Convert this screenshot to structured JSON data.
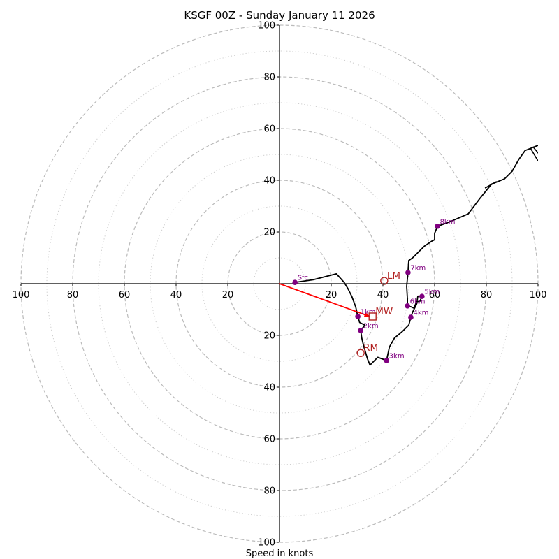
{
  "chart_data": {
    "type": "line",
    "subtype": "hodograph",
    "title": "KSGF 00Z - Sunday January 11 2026",
    "xlabel": "Speed in knots",
    "ylabel": "",
    "range": [
      -100,
      100
    ],
    "rings": {
      "major_dashed": [
        20,
        40,
        60,
        80,
        100
      ],
      "minor_dotted": [
        10,
        30,
        50,
        70,
        90
      ],
      "color": "#bbbbbb"
    },
    "ticks": {
      "x_left": [
        "100",
        "80",
        "60",
        "40",
        "20"
      ],
      "x_left_values": [
        -100,
        -80,
        -60,
        -40,
        -20
      ],
      "x_right": [
        "20",
        "40",
        "60",
        "80",
        "100"
      ],
      "x_right_values": [
        20,
        40,
        60,
        80,
        100
      ],
      "y_top": [
        "20",
        "40",
        "60",
        "80",
        "100"
      ],
      "y_top_values": [
        20,
        40,
        60,
        80,
        100
      ],
      "y_bottom": [
        "20",
        "40",
        "60",
        "80",
        "100"
      ],
      "y_bottom_values": [
        -20,
        -40,
        -60,
        -80,
        -100
      ]
    },
    "hodograph": {
      "color": "#000000",
      "u": [
        6,
        13,
        22,
        25,
        26.5,
        28,
        29.5,
        30.3,
        31,
        33,
        31.4,
        31.8,
        32.5,
        34,
        35,
        38,
        41.4,
        42.5,
        42.5,
        44.5,
        47.5,
        50,
        50.8,
        51.5,
        53,
        53.5,
        55.1,
        54.3,
        53,
        52,
        51,
        49.5,
        49.5,
        49.2,
        49.7,
        50,
        51.5,
        56,
        59,
        60,
        60,
        61.1,
        66,
        73,
        77.5,
        82,
        87,
        90,
        92.5,
        95,
        100
      ],
      "v": [
        0.5,
        1.5,
        3.8,
        0.5,
        -2,
        -5,
        -9,
        -12.7,
        -15,
        -16,
        -18.1,
        -21,
        -24,
        -29,
        -31.5,
        -28.5,
        -29.7,
        -24.5,
        -24.5,
        -21,
        -18.5,
        -16,
        -13,
        -11,
        -8,
        -4.8,
        -4.9,
        -6.8,
        -7,
        -9.5,
        -9,
        -8.6,
        -6,
        -1,
        4.3,
        9,
        10,
        14.5,
        16.5,
        17,
        19.5,
        22.2,
        24,
        27,
        33,
        38.5,
        40.5,
        43.5,
        48,
        51.5,
        53.5
      ]
    },
    "height_markers": {
      "color": "#800080",
      "labels": [
        "Sfc",
        "1km",
        "2km",
        "3km",
        "4km",
        "5km",
        "6km",
        "7km",
        "8km"
      ],
      "u": [
        6,
        30.3,
        31.4,
        41.4,
        50.8,
        55.1,
        49.5,
        49.7,
        61.1
      ],
      "v": [
        0.5,
        -12.7,
        -18.1,
        -29.7,
        -13,
        -4.9,
        -8.6,
        4.3,
        22.2
      ]
    },
    "storm_motion": {
      "color": "#b22222",
      "bunkers_left": {
        "label": "LM",
        "u": 40.5,
        "v": 1.1,
        "marker": "circle"
      },
      "bunkers_right": {
        "label": "RM",
        "u": 31.4,
        "v": -26.8,
        "marker": "circle"
      },
      "mean_wind": {
        "label": "MW",
        "u": 36,
        "v": -12.7,
        "marker": "square"
      }
    },
    "shear_vector": {
      "color": "#ff0000",
      "from_u": 0,
      "from_v": 0,
      "to_u": 35,
      "to_v": -12.7
    },
    "grid": true,
    "legend": "none"
  }
}
